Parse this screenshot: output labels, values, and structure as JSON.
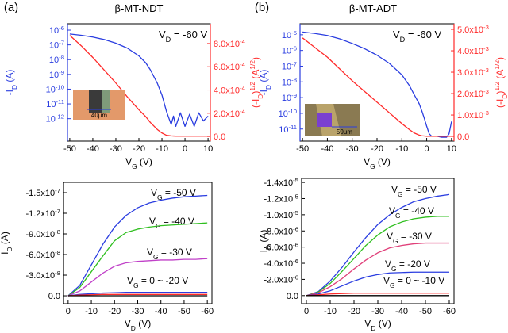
{
  "chart_data": [
    {
      "type": "line",
      "panel_label": "(a)",
      "title": "β-MT-NDT",
      "xlabel": [
        "V",
        {
          "sub": "G"
        },
        " (V)"
      ],
      "ylabel": [
        "-I",
        {
          "sub": "D"
        },
        " (A)"
      ],
      "y2label": [
        "(-I",
        {
          "sub": "D"
        },
        ")",
        {
          "sup": "1/2"
        },
        " (A",
        {
          "sup": "1/2"
        },
        ")"
      ],
      "annotations": [
        [
          "V",
          {
            "sub": "D"
          },
          " = -60 V"
        ]
      ],
      "inset_label": "40μm",
      "log_y": true,
      "xlim": [
        -51,
        11
      ],
      "xticks": [
        -50,
        -40,
        -30,
        -20,
        -10,
        0,
        10
      ],
      "ylim": [
        3e-14,
        2.7e-06
      ],
      "yticks": [
        {
          "value": 1e-06,
          "label": "10",
          "sup": "-6"
        },
        {
          "value": 1e-07,
          "label": "10",
          "sup": "-7"
        },
        {
          "value": 1e-08,
          "label": "10",
          "sup": "-8"
        },
        {
          "value": 1e-09,
          "label": "10",
          "sup": "-9"
        },
        {
          "value": 1e-10,
          "label": "10",
          "sup": "-10"
        },
        {
          "value": 1e-11,
          "label": "10",
          "sup": "-11"
        },
        {
          "value": 1e-12,
          "label": "10",
          "sup": "-12"
        }
      ],
      "y2lim": [
        -4e-05,
        0.00097
      ],
      "y2ticks": [
        {
          "value": 0,
          "label": "0.0"
        },
        {
          "value": 0.0002,
          "label": "2.0x10",
          "sup": "-4"
        },
        {
          "value": 0.0004,
          "label": "4.0x10",
          "sup": "-4"
        },
        {
          "value": 0.0006,
          "label": "6.0x10",
          "sup": "-4"
        },
        {
          "value": 0.0008,
          "label": "8.0x10",
          "sup": "-4"
        }
      ],
      "x": [
        -50,
        -45,
        -40,
        -35,
        -30,
        -25,
        -20,
        -17,
        -15,
        -12,
        -10,
        -8,
        -6,
        -5,
        -4,
        -2,
        0,
        2,
        4,
        6,
        8,
        10
      ],
      "series": [
        {
          "color": "#2a3de0",
          "values": [
            5.5e-07,
            4.5e-07,
            3.4e-07,
            2.3e-07,
            1.3e-07,
            6e-08,
            1.8e-08,
            6e-09,
            2e-09,
            2.5e-10,
            4e-11,
            3e-12,
            4e-13,
            1.5e-12,
            3e-13,
            2.5e-12,
            3e-13,
            2e-12,
            3e-13,
            2.5e-12,
            7e-13,
            1.5e-12
          ]
        },
        {
          "color": "#ff2a2a",
          "axis": "y2",
          "values": [
            0.00087,
            0.00078,
            0.00068,
            0.00057,
            0.00046,
            0.00034,
            0.00023,
            0.00017,
            0.00012,
            6e-05,
            3e-05,
            1e-05,
            5e-06,
            4e-06,
            3e-06,
            3e-06,
            3e-06,
            3e-06,
            3e-06,
            3e-06,
            3e-06,
            3e-06
          ]
        }
      ]
    },
    {
      "type": "line",
      "xlabel": [
        "V",
        {
          "sub": "D"
        },
        " (V)"
      ],
      "ylabel": [
        "I",
        {
          "sub": "D"
        },
        " (A)"
      ],
      "annotations": [
        [
          "V",
          {
            "sub": "G"
          },
          " = -50 V"
        ],
        [
          "V",
          {
            "sub": "G"
          },
          " = -40 V"
        ],
        [
          "V",
          {
            "sub": "G"
          },
          " = -30 V"
        ],
        [
          "V",
          {
            "sub": "G"
          },
          " = 0 ~ -20 V"
        ]
      ],
      "xlim": [
        2,
        -62
      ],
      "xticks": [
        0,
        -10,
        -20,
        -30,
        -40,
        -50,
        -60
      ],
      "ylim": [
        1.15e-08,
        -1.65e-07
      ],
      "yticks": [
        {
          "value": 0,
          "label": "0.0"
        },
        {
          "value": -3e-08,
          "label": "-3.0x10",
          "sup": "-8"
        },
        {
          "value": -6e-08,
          "label": "-6.0x10",
          "sup": "-8"
        },
        {
          "value": -9e-08,
          "label": "-9.0x10",
          "sup": "-8"
        },
        {
          "value": -1.2e-07,
          "label": "-1.2x10",
          "sup": "-7"
        },
        {
          "value": -1.5e-07,
          "label": "-1.5x10",
          "sup": "-7"
        }
      ],
      "x": [
        0,
        -5,
        -10,
        -15,
        -20,
        -25,
        -30,
        -35,
        -40,
        -45,
        -50,
        -55,
        -60
      ],
      "series": [
        {
          "color": "#2a3de0",
          "values": [
            0,
            -1.5e-08,
            -4.5e-08,
            -7.5e-08,
            -1e-07,
            -1.17e-07,
            -1.28e-07,
            -1.35e-07,
            -1.39e-07,
            -1.42e-07,
            -1.44e-07,
            -1.45e-07,
            -1.46e-07
          ]
        },
        {
          "color": "#2fbf1f",
          "values": [
            0,
            -1.2e-08,
            -3.5e-08,
            -5.8e-08,
            -8e-08,
            -9.2e-08,
            -9.7e-08,
            -1e-07,
            -1.02e-07,
            -1.03e-07,
            -1.04e-07,
            -1.05e-07,
            -1.06e-07
          ]
        },
        {
          "color": "#c040c8",
          "values": [
            0,
            -7e-09,
            -2e-08,
            -3.3e-08,
            -4.3e-08,
            -4.8e-08,
            -5e-08,
            -5.1e-08,
            -5.2e-08,
            -5.2e-08,
            -5.3e-08,
            -5.3e-08,
            -5.4e-08
          ]
        },
        {
          "color": "#2a3de0",
          "values": [
            0,
            -2e-09,
            -3e-09,
            -4e-09,
            -4.5e-09,
            -5e-09,
            -5e-09,
            -5e-09,
            -5e-09,
            -5e-09,
            -5e-09,
            -5e-09,
            -5e-09
          ]
        },
        {
          "color": "#ff2a2a",
          "values": [
            0,
            -1e-09,
            -1.5e-09,
            -2e-09,
            -2e-09,
            -2e-09,
            -2e-09,
            -2e-09,
            -2e-09,
            -2e-09,
            -2e-09,
            -2e-09,
            -2e-09
          ]
        },
        {
          "color": "#000000",
          "values": [
            0,
            0,
            0,
            0,
            0,
            0,
            0,
            0,
            0,
            0,
            0,
            0,
            0
          ]
        }
      ]
    },
    {
      "type": "line",
      "panel_label": "(b)",
      "title": "β-MT-ADT",
      "xlabel": [
        "V",
        {
          "sub": "G"
        },
        " (V)"
      ],
      "ylabel": [
        "-I",
        {
          "sub": "D"
        },
        " (A)"
      ],
      "y2label": [
        "(-I",
        {
          "sub": "D"
        },
        ")",
        {
          "sup": "1/2"
        },
        " (A",
        {
          "sup": "1/2"
        },
        ")"
      ],
      "annotations": [
        [
          "V",
          {
            "sub": "D"
          },
          " = -60 V"
        ]
      ],
      "inset_label": "50μm",
      "log_y": true,
      "xlim": [
        -51,
        11
      ],
      "xticks": [
        -50,
        -40,
        -30,
        -20,
        -10,
        0,
        10
      ],
      "ylim": [
        1.7e-12,
        5e-05
      ],
      "yticks": [
        {
          "value": 1e-05,
          "label": "10",
          "sup": "-5"
        },
        {
          "value": 1e-06,
          "label": "10",
          "sup": "-6"
        },
        {
          "value": 1e-07,
          "label": "10",
          "sup": "-7"
        },
        {
          "value": 1e-08,
          "label": "10",
          "sup": "-8"
        },
        {
          "value": 1e-09,
          "label": "10",
          "sup": "-9"
        },
        {
          "value": 1e-10,
          "label": "10",
          "sup": "-10"
        },
        {
          "value": 1e-11,
          "label": "10",
          "sup": "-11"
        }
      ],
      "y2lim": [
        -0.00022,
        0.00526
      ],
      "y2ticks": [
        {
          "value": 0,
          "label": "0.0"
        },
        {
          "value": 0.001,
          "label": "1.0x10",
          "sup": "-3"
        },
        {
          "value": 0.002,
          "label": "2.0x10",
          "sup": "-3"
        },
        {
          "value": 0.003,
          "label": "3.0x10",
          "sup": "-3"
        },
        {
          "value": 0.004,
          "label": "4.0x10",
          "sup": "-3"
        },
        {
          "value": 0.005,
          "label": "5.0x10",
          "sup": "-3"
        }
      ],
      "x": [
        -50,
        -45,
        -40,
        -35,
        -30,
        -25,
        -20,
        -15,
        -10,
        -7,
        -5,
        -3,
        -2,
        -1,
        0,
        1,
        2,
        4,
        6,
        8,
        9,
        10
      ],
      "series": [
        {
          "color": "#2a3de0",
          "values": [
            1.5e-05,
            1.2e-05,
            9e-06,
            5.5e-06,
            2.8e-06,
            1.3e-06,
            5e-07,
            1.5e-07,
            2.8e-08,
            6e-09,
            1.5e-09,
            4e-10,
            1.5e-10,
            5e-11,
            1.5e-11,
            5e-12,
            3.5e-12,
            3.5e-12,
            3e-12,
            3e-12,
            5e-12,
            3e-11
          ]
        },
        {
          "color": "#ff2a2a",
          "axis": "y2",
          "values": [
            0.0046,
            0.00415,
            0.0037,
            0.00315,
            0.0026,
            0.0021,
            0.0016,
            0.0011,
            0.0006,
            0.00032,
            0.00016,
            6e-05,
            3e-05,
            2e-05,
            1e-05,
            1e-05,
            1e-05,
            1e-05,
            1e-05,
            1e-05,
            1e-05,
            1e-05
          ]
        }
      ]
    },
    {
      "type": "line",
      "xlabel": [
        "V",
        {
          "sub": "D"
        },
        " (V)"
      ],
      "ylabel": [
        "I",
        {
          "sub": "D"
        },
        " (A)"
      ],
      "annotations": [
        [
          "V",
          {
            "sub": "G"
          },
          " = -50 V"
        ],
        [
          "V",
          {
            "sub": "G"
          },
          " = -40 V"
        ],
        [
          "V",
          {
            "sub": "G"
          },
          " = -30 V"
        ],
        [
          "V",
          {
            "sub": "G"
          },
          " = -20 V"
        ],
        [
          "V",
          {
            "sub": "G"
          },
          " = 0 ~ -10 V"
        ]
      ],
      "xlim": [
        2,
        -62
      ],
      "xticks": [
        0,
        -10,
        -20,
        -30,
        -40,
        -50,
        -60
      ],
      "ylim": [
        1e-06,
        -1.45e-05
      ],
      "yticks": [
        {
          "value": 0,
          "label": "0.0"
        },
        {
          "value": -2e-06,
          "label": "-2.0x10",
          "sup": "-6"
        },
        {
          "value": -4e-06,
          "label": "-4.0x10",
          "sup": "-6"
        },
        {
          "value": -6e-06,
          "label": "-6.0x10",
          "sup": "-6"
        },
        {
          "value": -8e-06,
          "label": "-8.0x10",
          "sup": "-6"
        },
        {
          "value": -1e-05,
          "label": "-1.0x10",
          "sup": "-5"
        },
        {
          "value": -1.2e-05,
          "label": "-1.2x10",
          "sup": "-5"
        },
        {
          "value": -1.4e-05,
          "label": "-1.4x10",
          "sup": "-5"
        }
      ],
      "x": [
        0,
        -5,
        -10,
        -15,
        -20,
        -25,
        -30,
        -35,
        -40,
        -45,
        -50,
        -55,
        -60
      ],
      "series": [
        {
          "color": "#2a3de0",
          "values": [
            0,
            -5e-07,
            -1.8e-06,
            -3.5e-06,
            -5.4e-06,
            -7.2e-06,
            -8.8e-06,
            -1e-05,
            -1.09e-05,
            -1.16e-05,
            -1.2e-05,
            -1.23e-05,
            -1.25e-05
          ]
        },
        {
          "color": "#2fbf1f",
          "values": [
            0,
            -4.5e-07,
            -1.5e-06,
            -3e-06,
            -4.6e-06,
            -6.2e-06,
            -7.5e-06,
            -8.5e-06,
            -9.1e-06,
            -9.5e-06,
            -9.7e-06,
            -9.8e-06,
            -9.8e-06
          ]
        },
        {
          "color": "#e0407a",
          "values": [
            0,
            -3.5e-07,
            -1.1e-06,
            -2.1e-06,
            -3.3e-06,
            -4.4e-06,
            -5.3e-06,
            -5.9e-06,
            -6.2e-06,
            -6.4e-06,
            -6.5e-06,
            -6.5e-06,
            -6.5e-06
          ]
        },
        {
          "color": "#2a3de0",
          "values": [
            0,
            -2e-07,
            -6e-07,
            -1.2e-06,
            -1.8e-06,
            -2.3e-06,
            -2.6e-06,
            -2.8e-06,
            -2.85e-06,
            -2.9e-06,
            -2.9e-06,
            -2.9e-06,
            -2.9e-06
          ]
        },
        {
          "color": "#ff2a2a",
          "values": [
            0,
            -1e-07,
            -2e-07,
            -2.5e-07,
            -3e-07,
            -3e-07,
            -3e-07,
            -3e-07,
            -3e-07,
            -3e-07,
            -3e-07,
            -3e-07,
            -3e-07
          ]
        },
        {
          "color": "#000000",
          "values": [
            0,
            0,
            0,
            0,
            0,
            0,
            0,
            0,
            0,
            0,
            0,
            0,
            0
          ]
        }
      ]
    }
  ]
}
